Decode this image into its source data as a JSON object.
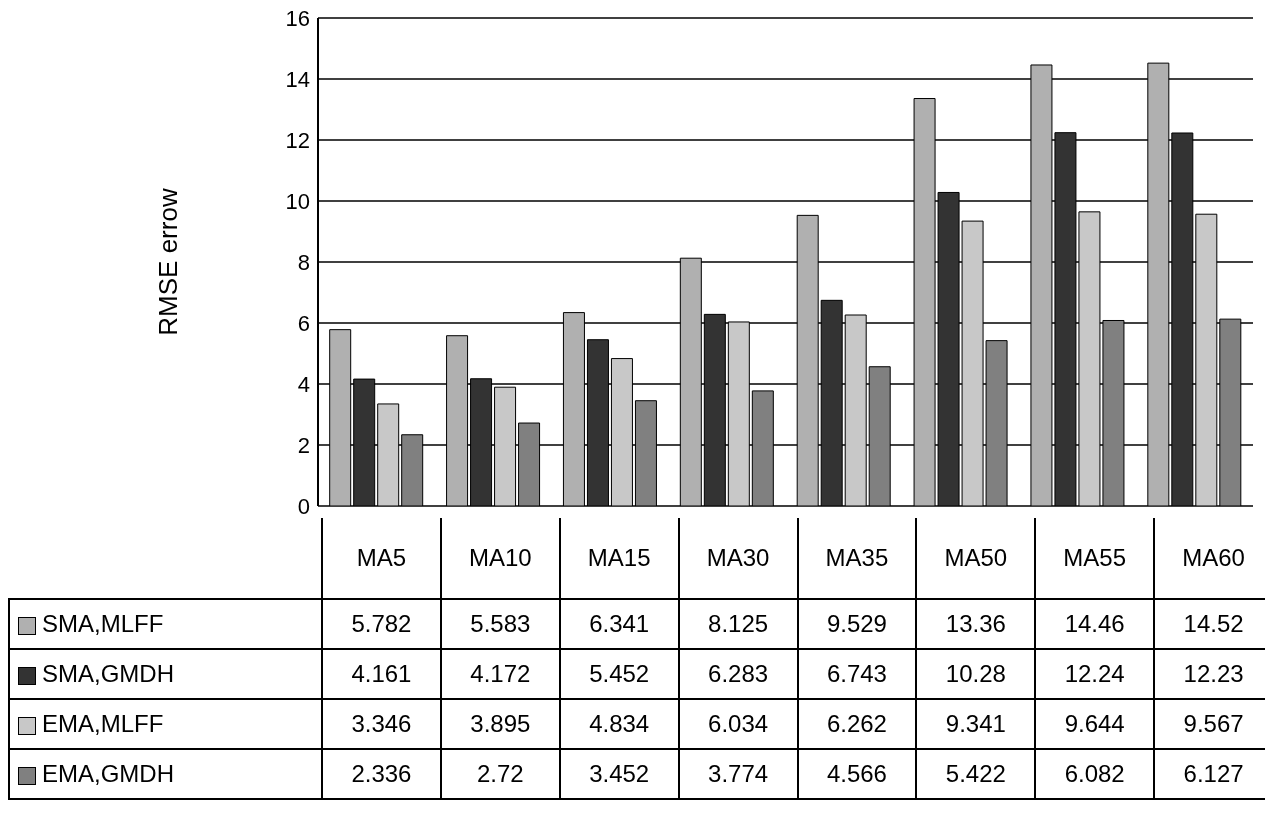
{
  "chart_data": {
    "type": "bar",
    "ylabel": "RMSE errow",
    "categories": [
      "MA5",
      "MA10",
      "MA15",
      "MA30",
      "MA35",
      "MA50",
      "MA55",
      "MA60"
    ],
    "series": [
      {
        "name": "SMA,MLFF",
        "color": "#b0b0b0",
        "values": [
          5.782,
          5.583,
          6.341,
          8.125,
          9.529,
          13.36,
          14.46,
          14.52
        ]
      },
      {
        "name": "SMA,GMDH",
        "color": "#333333",
        "values": [
          4.161,
          4.172,
          5.452,
          6.283,
          6.743,
          10.28,
          12.24,
          12.23
        ]
      },
      {
        "name": "EMA,MLFF",
        "color": "#c8c8c8",
        "values": [
          3.346,
          3.895,
          4.834,
          6.034,
          6.262,
          9.341,
          9.644,
          9.567
        ]
      },
      {
        "name": "EMA,GMDH",
        "color": "#808080",
        "values": [
          2.336,
          2.72,
          3.452,
          3.774,
          4.566,
          5.422,
          6.082,
          6.127
        ]
      }
    ],
    "ylim": [
      0,
      16
    ],
    "yticks": [
      0,
      2,
      4,
      6,
      8,
      10,
      12,
      14,
      16
    ],
    "grid": "y",
    "legend": "bottom",
    "data_labels": true
  }
}
